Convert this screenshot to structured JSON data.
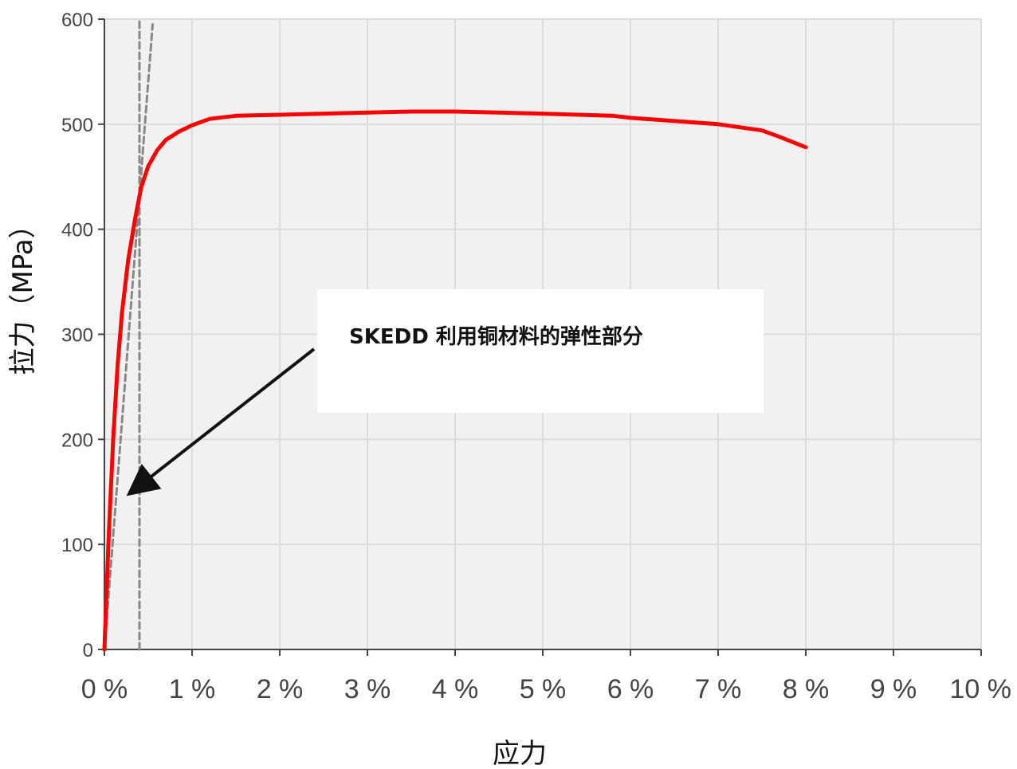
{
  "chart_data": {
    "type": "line",
    "title": "",
    "xlabel": "应力",
    "ylabel": "拉力（MPa）",
    "xlim": [
      0,
      10
    ],
    "ylim": [
      0,
      600
    ],
    "x_ticks": [
      0,
      1,
      2,
      3,
      4,
      5,
      6,
      7,
      8,
      9,
      10
    ],
    "x_tick_labels": [
      "0 %",
      "1 %",
      "2 %",
      "3 %",
      "4 %",
      "5 %",
      "6 %",
      "7 %",
      "8 %",
      "9 %",
      "10 %"
    ],
    "y_ticks": [
      0,
      100,
      200,
      300,
      400,
      500,
      600
    ],
    "y_tick_labels": [
      "0",
      "100",
      "200",
      "300",
      "400",
      "500",
      "600"
    ],
    "grid": true,
    "background_color": "#f1f1f1",
    "grid_color": "#dcdcdc",
    "series": [
      {
        "color": "#ff0000",
        "style": "solid",
        "x": [
          0,
          0.05,
          0.1,
          0.15,
          0.2,
          0.27,
          0.35,
          0.42,
          0.5,
          0.6,
          0.7,
          0.85,
          1.0,
          1.2,
          1.5,
          2.0,
          3.0,
          3.5,
          4.0,
          5.0,
          5.8,
          6.0,
          7.0,
          7.5,
          7.7,
          8.0
        ],
        "y": [
          0,
          110,
          200,
          270,
          320,
          370,
          410,
          440,
          460,
          475,
          485,
          493,
          499,
          505,
          508,
          509,
          511,
          512,
          512,
          510,
          508,
          506,
          500,
          494,
          488,
          478
        ]
      },
      {
        "color": "#888888",
        "style": "dashed",
        "x": [
          0.4,
          0.4
        ],
        "y": [
          0,
          600
        ]
      },
      {
        "color": "#888888",
        "style": "dashed",
        "x": [
          0,
          0.55
        ],
        "y": [
          0,
          595
        ]
      }
    ],
    "annotations": [
      {
        "text": "SKEDD 利用铜材料的弹性部分",
        "arrow_to": [
          0.28,
          148
        ],
        "box_color": "#ffffff"
      }
    ]
  }
}
